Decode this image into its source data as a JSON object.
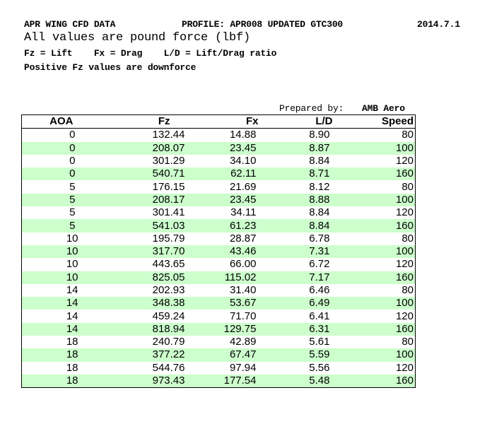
{
  "header": {
    "source": "APR WING CFD DATA",
    "profile": "PROFILE: APR008 UPDATED GTC300",
    "date": "2014.7.1",
    "units": "All values are pound force (lbf)",
    "legend": "Fz = Lift    Fx = Drag    L/D = Lift/Drag ratio",
    "note": "Positive Fz values are downforce"
  },
  "prepared_by": {
    "label": "Prepared by:",
    "name": "AMB Aero"
  },
  "table": {
    "columns": [
      "AOA",
      "Fz",
      "Fx",
      "L/D",
      "Speed"
    ],
    "rows": [
      [
        "0",
        "132.44",
        "14.88",
        "8.90",
        "80"
      ],
      [
        "0",
        "208.07",
        "23.45",
        "8.87",
        "100"
      ],
      [
        "0",
        "301.29",
        "34.10",
        "8.84",
        "120"
      ],
      [
        "0",
        "540.71",
        "62.11",
        "8.71",
        "160"
      ],
      [
        "5",
        "176.15",
        "21.69",
        "8.12",
        "80"
      ],
      [
        "5",
        "208.17",
        "23.45",
        "8.88",
        "100"
      ],
      [
        "5",
        "301.41",
        "34.11",
        "8.84",
        "120"
      ],
      [
        "5",
        "541.03",
        "61.23",
        "8.84",
        "160"
      ],
      [
        "10",
        "195.79",
        "28.87",
        "6.78",
        "80"
      ],
      [
        "10",
        "317.70",
        "43.46",
        "7.31",
        "100"
      ],
      [
        "10",
        "443.65",
        "66.00",
        "6.72",
        "120"
      ],
      [
        "10",
        "825.05",
        "115.02",
        "7.17",
        "160"
      ],
      [
        "14",
        "202.93",
        "31.40",
        "6.46",
        "80"
      ],
      [
        "14",
        "348.38",
        "53.67",
        "6.49",
        "100"
      ],
      [
        "14",
        "459.24",
        "71.70",
        "6.41",
        "120"
      ],
      [
        "14",
        "818.94",
        "129.75",
        "6.31",
        "160"
      ],
      [
        "18",
        "240.79",
        "42.89",
        "5.61",
        "80"
      ],
      [
        "18",
        "377.22",
        "67.47",
        "5.59",
        "100"
      ],
      [
        "18",
        "544.76",
        "97.94",
        "5.56",
        "120"
      ],
      [
        "18",
        "973.43",
        "177.54",
        "5.48",
        "160"
      ]
    ]
  }
}
